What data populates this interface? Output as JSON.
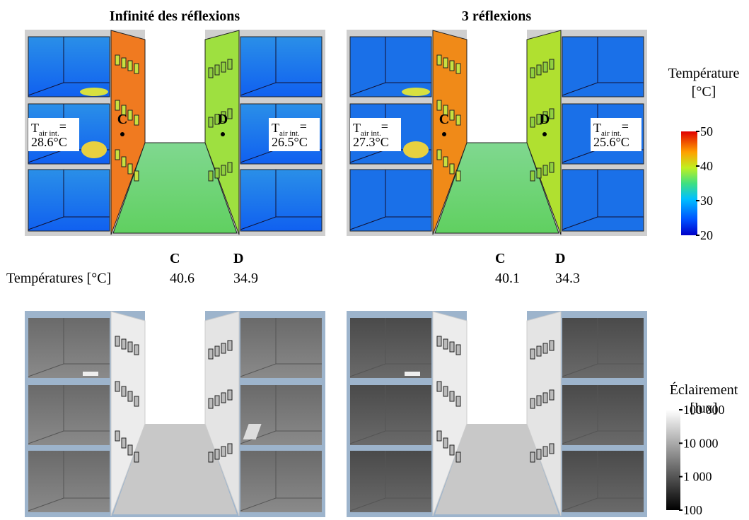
{
  "panels": [
    {
      "title": "Infinité des réflexions",
      "point_labels": [
        "C",
        "D"
      ],
      "air_temperatures": [
        {
          "symbol": "T",
          "subscript": "air int.",
          "sign": "=",
          "value": "28.6°C"
        },
        {
          "symbol": "T",
          "subscript": "air int.",
          "sign": "=",
          "value": "26.5°C"
        }
      ]
    },
    {
      "title": "3 réflexions",
      "point_labels": [
        "C",
        "D"
      ],
      "air_temperatures": [
        {
          "symbol": "T",
          "subscript": "air int.",
          "sign": "=",
          "value": "27.3°C"
        },
        {
          "symbol": "T",
          "subscript": "air int.",
          "sign": "=",
          "value": "25.6°C"
        }
      ]
    }
  ],
  "table": {
    "row_label": "Températures [°C]",
    "columns": [
      {
        "headers": [
          "C",
          "D"
        ],
        "values": [
          40.6,
          34.9
        ]
      },
      {
        "headers": [
          "C",
          "D"
        ],
        "values": [
          40.1,
          34.3
        ]
      }
    ]
  },
  "temperature_scale": {
    "title": "Température",
    "unit": "[°C]",
    "ticks": [
      20,
      30,
      40,
      50
    ],
    "log": false
  },
  "illuminance_scale": {
    "title": "Éclairement",
    "unit": "[lux]",
    "log": true,
    "ticks": [
      {
        "value": 100,
        "label": "100"
      },
      {
        "value": 1000,
        "label": "1 000"
      },
      {
        "value": 10000,
        "label": "10 000"
      },
      {
        "value": 100000,
        "label": "100 000"
      }
    ]
  }
}
